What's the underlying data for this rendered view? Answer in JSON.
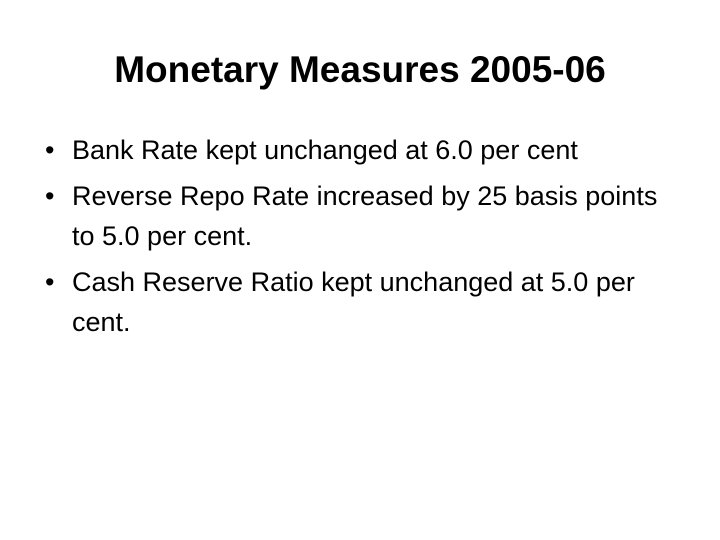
{
  "slide": {
    "title": "Monetary Measures 2005-06",
    "bullets": [
      "Bank Rate kept unchanged at 6.0 per cent",
      "Reverse Repo Rate increased by 25 basis points to 5.0 per cent.",
      "Cash Reserve Ratio kept unchanged at 5.0 per cent."
    ]
  }
}
